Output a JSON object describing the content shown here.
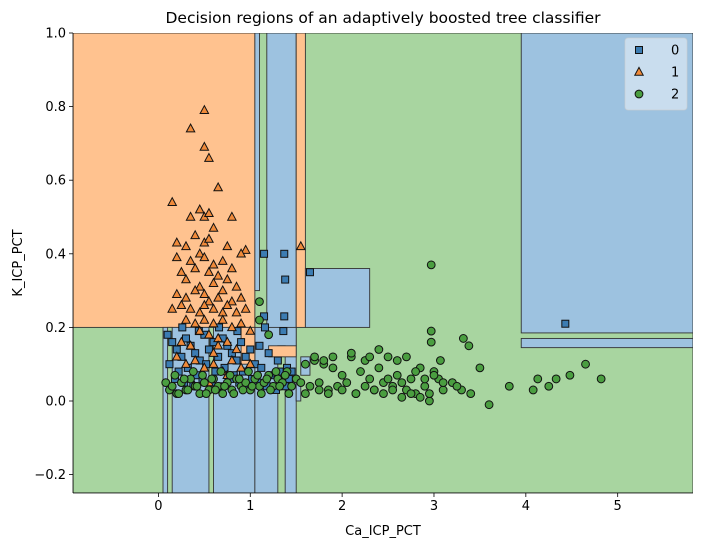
{
  "chart_data": {
    "type": "scatter",
    "title": "Decision regions of an adaptively boosted tree classifier",
    "xlabel": "Ca_ICP_PCT",
    "ylabel": "K_ICP_PCT",
    "xlim": [
      -0.93,
      5.82
    ],
    "ylim": [
      -0.25,
      1.0
    ],
    "xticks": [
      0,
      1,
      2,
      3,
      4,
      5
    ],
    "yticks": [
      -0.2,
      0.0,
      0.2,
      0.4,
      0.6,
      0.8,
      1.0
    ],
    "xtick_labels": [
      "0",
      "1",
      "2",
      "3",
      "4",
      "5"
    ],
    "ytick_labels": [
      "−0.2",
      "0.0",
      "0.2",
      "0.4",
      "0.6",
      "0.8",
      "1.0"
    ],
    "grid": false,
    "legend_position": "top-right",
    "colors": {
      "region_0": "#9dc2e0",
      "region_1": "#ffc28f",
      "region_2": "#a8d5a0",
      "marker_0": "#3c7cb2",
      "marker_1": "#f08a3a",
      "marker_2": "#4a9e40"
    },
    "regions": [
      {
        "class": 2,
        "x": [
          -0.93,
          5.82
        ],
        "y": [
          -0.25,
          1.0
        ]
      },
      {
        "class": 1,
        "x": [
          -0.93,
          1.05
        ],
        "y": [
          0.2,
          1.0
        ]
      },
      {
        "class": 1,
        "x": [
          0.55,
          0.58
        ],
        "y": [
          0.03,
          0.2
        ]
      },
      {
        "class": 0,
        "x": [
          1.05,
          1.1
        ],
        "y": [
          0.3,
          1.0
        ]
      },
      {
        "class": 0,
        "x": [
          1.18,
          1.5
        ],
        "y": [
          0.15,
          1.0
        ]
      },
      {
        "class": 1,
        "x": [
          1.5,
          1.6
        ],
        "y": [
          0.2,
          1.0
        ]
      },
      {
        "class": 0,
        "x": [
          3.95,
          5.82
        ],
        "y": [
          0.185,
          1.0
        ]
      },
      {
        "class": 0,
        "x": [
          1.6,
          2.3
        ],
        "y": [
          0.2,
          0.36
        ]
      },
      {
        "class": 0,
        "x": [
          0.05,
          1.05
        ],
        "y": [
          -0.25,
          0.2
        ]
      },
      {
        "class": 2,
        "x": [
          0.1,
          0.15
        ],
        "y": [
          -0.25,
          0.2
        ]
      },
      {
        "class": 2,
        "x": [
          0.55,
          0.6
        ],
        "y": [
          -0.25,
          0.2
        ]
      },
      {
        "class": 0,
        "x": [
          1.05,
          1.5
        ],
        "y": [
          -0.25,
          0.2
        ]
      },
      {
        "class": 2,
        "x": [
          1.3,
          1.38
        ],
        "y": [
          -0.25,
          0.15
        ]
      },
      {
        "class": 1,
        "x": [
          0.9,
          1.05
        ],
        "y": [
          0.1,
          0.2
        ]
      },
      {
        "class": 1,
        "x": [
          1.2,
          1.5
        ],
        "y": [
          0.12,
          0.15
        ]
      },
      {
        "class": 0,
        "x": [
          3.95,
          5.82
        ],
        "y": [
          0.145,
          0.17
        ]
      },
      {
        "class": 0,
        "x": [
          1.55,
          1.65
        ],
        "y": [
          0.07,
          0.12
        ]
      },
      {
        "class": 0,
        "x": [
          1.5,
          1.55
        ],
        "y": [
          0.0,
          0.05
        ]
      }
    ],
    "series": [
      {
        "name": "0",
        "marker": "square",
        "x": [
          1.15,
          1.37,
          1.38,
          1.65,
          1.37,
          1.15,
          4.43,
          0.1,
          0.15,
          0.2,
          0.25,
          0.3,
          0.35,
          0.4,
          0.45,
          0.5,
          0.55,
          0.6,
          0.65,
          0.7,
          0.75,
          0.8,
          0.85,
          0.9,
          0.95,
          1.0,
          1.05,
          1.1,
          1.2,
          1.3,
          1.4,
          1.45,
          0.12,
          0.22,
          0.32,
          0.42,
          0.52,
          0.62,
          0.72,
          0.82,
          0.92,
          1.02,
          1.12,
          1.22,
          1.32,
          1.42,
          0.18,
          0.28,
          0.38,
          0.48,
          0.58,
          0.68,
          0.78,
          0.88,
          0.98,
          1.08,
          1.18,
          1.28,
          1.38,
          0.26,
          0.44,
          0.66,
          0.86,
          1.16,
          1.36
        ],
        "y": [
          0.4,
          0.4,
          0.33,
          0.35,
          0.23,
          0.23,
          0.21,
          0.18,
          0.16,
          0.14,
          0.12,
          0.17,
          0.15,
          0.13,
          0.11,
          0.18,
          0.14,
          0.16,
          0.12,
          0.17,
          0.15,
          0.13,
          0.11,
          0.16,
          0.12,
          0.14,
          0.1,
          0.15,
          0.13,
          0.11,
          0.09,
          0.08,
          0.1,
          0.08,
          0.09,
          0.07,
          0.1,
          0.08,
          0.09,
          0.07,
          0.08,
          0.06,
          0.09,
          0.07,
          0.08,
          0.06,
          0.06,
          0.05,
          0.04,
          0.06,
          0.05,
          0.04,
          0.06,
          0.05,
          0.04,
          0.05,
          0.04,
          0.03,
          0.04,
          0.2,
          0.19,
          0.2,
          0.19,
          0.2,
          0.19
        ]
      },
      {
        "name": "1",
        "marker": "triangle",
        "x": [
          0.5,
          0.35,
          0.5,
          0.55,
          0.65,
          0.15,
          0.45,
          0.5,
          0.55,
          0.35,
          0.6,
          0.8,
          0.2,
          0.4,
          0.5,
          0.55,
          0.3,
          0.45,
          0.75,
          0.95,
          0.2,
          0.35,
          0.5,
          0.6,
          0.7,
          0.9,
          0.25,
          0.4,
          0.55,
          0.65,
          0.8,
          0.3,
          0.45,
          0.6,
          0.75,
          0.85,
          0.2,
          0.3,
          0.4,
          0.5,
          0.55,
          0.65,
          0.7,
          0.8,
          0.9,
          0.15,
          0.25,
          0.35,
          0.45,
          0.5,
          0.6,
          0.7,
          0.75,
          0.85,
          0.95,
          0.3,
          0.4,
          0.5,
          0.6,
          0.7,
          0.8,
          0.9,
          1.0,
          0.45,
          0.55,
          0.65,
          0.25,
          0.35,
          0.65,
          0.75,
          0.85,
          0.6,
          1.55,
          0.2,
          0.3,
          0.4,
          0.5,
          0.6,
          0.7,
          0.8,
          0.9,
          1.0,
          0.35,
          0.55,
          0.75
        ],
        "y": [
          0.79,
          0.74,
          0.69,
          0.66,
          0.58,
          0.54,
          0.52,
          0.5,
          0.51,
          0.5,
          0.47,
          0.5,
          0.43,
          0.45,
          0.43,
          0.44,
          0.42,
          0.4,
          0.42,
          0.41,
          0.39,
          0.38,
          0.39,
          0.37,
          0.38,
          0.4,
          0.35,
          0.36,
          0.35,
          0.34,
          0.36,
          0.33,
          0.31,
          0.32,
          0.33,
          0.31,
          0.29,
          0.28,
          0.3,
          0.29,
          0.27,
          0.28,
          0.3,
          0.27,
          0.28,
          0.25,
          0.26,
          0.25,
          0.24,
          0.26,
          0.25,
          0.24,
          0.26,
          0.24,
          0.25,
          0.22,
          0.21,
          0.22,
          0.21,
          0.22,
          0.2,
          0.21,
          0.19,
          0.19,
          0.18,
          0.17,
          0.16,
          0.15,
          0.15,
          0.16,
          0.14,
          0.13,
          0.42,
          0.12,
          0.1,
          0.11,
          0.09,
          0.1,
          0.08,
          0.11,
          0.09,
          0.1,
          0.06,
          0.05,
          0.07
        ]
      },
      {
        "name": "2",
        "marker": "circle",
        "x": [
          0.08,
          0.12,
          0.15,
          0.2,
          0.25,
          0.3,
          0.35,
          0.4,
          0.45,
          0.5,
          0.55,
          0.6,
          0.65,
          0.7,
          0.75,
          0.8,
          0.85,
          0.9,
          0.95,
          1.0,
          1.05,
          1.1,
          1.15,
          1.2,
          1.25,
          1.3,
          1.35,
          1.4,
          1.45,
          1.5,
          1.55,
          1.6,
          1.65,
          1.7,
          1.75,
          1.8,
          1.85,
          1.9,
          1.95,
          2.0,
          2.05,
          2.1,
          2.15,
          2.2,
          2.25,
          2.3,
          2.35,
          2.4,
          2.45,
          2.5,
          2.55,
          2.6,
          2.65,
          2.7,
          2.75,
          2.8,
          2.85,
          2.9,
          2.95,
          3.0,
          3.05,
          3.1,
          3.2,
          3.3,
          3.4,
          3.5,
          3.6,
          3.82,
          4.08,
          4.13,
          4.25,
          4.33,
          4.48,
          4.65,
          4.82,
          2.97,
          2.97,
          3.38,
          3.32,
          3.07,
          2.97,
          2.25,
          1.1,
          1.1,
          1.2,
          1.7,
          1.8,
          1.9,
          2.1,
          2.3,
          2.4,
          2.5,
          2.6,
          2.7,
          2.8,
          2.9,
          3.0,
          3.1,
          3.25,
          1.6,
          1.75,
          1.85,
          2.0,
          2.15,
          2.35,
          2.45,
          2.55,
          2.65,
          2.75,
          2.85,
          2.95,
          0.22,
          0.32,
          0.42,
          0.52,
          0.62,
          0.72,
          0.82,
          0.92,
          1.02,
          1.12,
          1.22,
          1.32,
          1.42,
          0.18,
          0.28,
          0.38,
          0.48,
          0.58,
          0.68,
          0.78,
          0.88,
          0.98,
          1.08,
          1.18,
          1.28,
          1.38
        ],
        "y": [
          0.05,
          0.03,
          0.04,
          0.02,
          0.05,
          0.03,
          0.06,
          0.04,
          0.02,
          0.05,
          0.03,
          0.06,
          0.04,
          0.02,
          0.05,
          0.03,
          0.06,
          0.04,
          0.05,
          0.03,
          0.06,
          0.04,
          0.05,
          0.07,
          0.04,
          0.06,
          0.05,
          0.08,
          0.04,
          0.06,
          0.05,
          0.1,
          0.04,
          0.11,
          0.05,
          0.1,
          0.03,
          0.09,
          0.04,
          0.07,
          0.05,
          0.12,
          0.02,
          0.08,
          0.04,
          0.06,
          0.03,
          0.09,
          0.05,
          0.06,
          0.04,
          0.07,
          0.05,
          0.03,
          0.06,
          0.02,
          0.09,
          0.04,
          0.0,
          0.08,
          0.06,
          0.03,
          0.05,
          0.03,
          0.02,
          0.09,
          -0.01,
          0.04,
          0.03,
          0.06,
          0.04,
          0.06,
          0.07,
          0.1,
          0.06,
          0.19,
          0.16,
          0.15,
          0.17,
          0.11,
          0.37,
          0.11,
          0.27,
          0.22,
          0.18,
          0.12,
          0.11,
          0.12,
          0.13,
          0.12,
          0.14,
          0.12,
          0.11,
          0.12,
          0.08,
          0.06,
          0.07,
          0.05,
          0.04,
          0.02,
          0.03,
          0.02,
          0.03,
          0.02,
          0.03,
          0.02,
          0.03,
          0.01,
          0.02,
          0.01,
          0.02,
          0.02,
          0.03,
          0.04,
          0.02,
          0.03,
          0.04,
          0.02,
          0.03,
          0.04,
          0.02,
          0.03,
          0.04,
          0.02,
          0.07,
          0.06,
          0.08,
          0.07,
          0.06,
          0.08,
          0.07,
          0.06,
          0.08,
          0.07,
          0.06,
          0.08,
          0.07
        ]
      }
    ]
  }
}
